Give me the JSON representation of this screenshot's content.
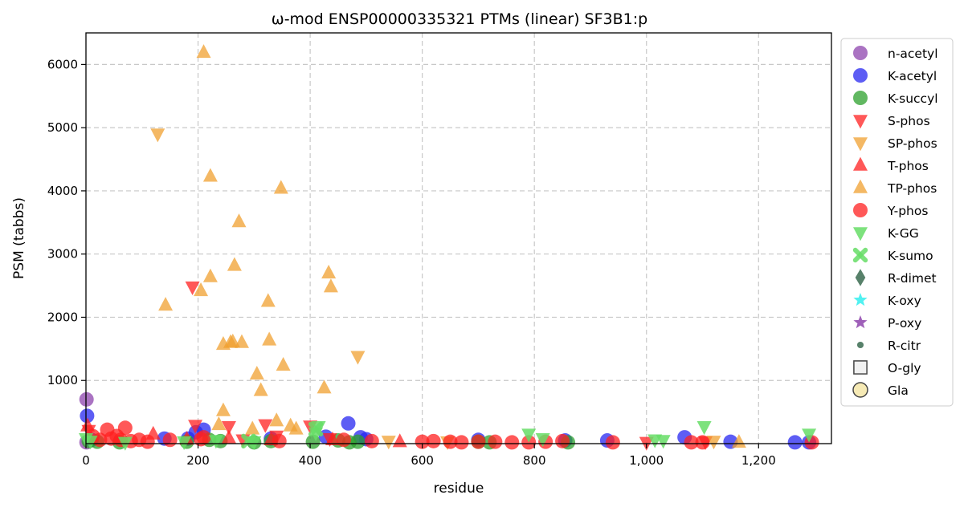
{
  "chart_data": {
    "type": "scatter",
    "title": "ω-mod ENSP00000335321 PTMs (linear) SF3B1:p",
    "xlabel": "residue",
    "ylabel": "PSM (tabbs)",
    "xlim": [
      0,
      1330
    ],
    "ylim": [
      0,
      6500
    ],
    "grid": true,
    "legend_placement": "outside-right",
    "xticks": [
      0,
      200,
      400,
      600,
      800,
      1000,
      1200
    ],
    "xtick_labels": [
      "0",
      "200",
      "400",
      "600",
      "800",
      "1,000",
      "1,200"
    ],
    "yticks": [
      1000,
      2000,
      3000,
      4000,
      5000,
      6000
    ],
    "ytick_labels": [
      "1000",
      "2000",
      "3000",
      "4000",
      "5000",
      "6000"
    ],
    "series": [
      {
        "name": "n-acetyl",
        "marker": "circle",
        "color": "#8e44ad",
        "alpha": 0.75,
        "x": [
          1,
          1
        ],
        "y": [
          700,
          20
        ]
      },
      {
        "name": "K-acetyl",
        "marker": "circle",
        "color": "#2727f0",
        "alpha": 0.75,
        "x": [
          2,
          10,
          140,
          182,
          196,
          210,
          330,
          428,
          468,
          490,
          500,
          700,
          855,
          930,
          1068,
          1150,
          1265,
          1290
        ],
        "y": [
          440,
          60,
          80,
          80,
          180,
          220,
          80,
          110,
          320,
          100,
          70,
          60,
          50,
          50,
          100,
          30,
          20,
          20
        ]
      },
      {
        "name": "K-succyl",
        "marker": "circle",
        "color": "#2ca02c",
        "alpha": 0.75,
        "x": [
          5,
          20,
          60,
          180,
          220,
          240,
          300,
          330,
          405,
          450,
          470,
          485,
          700,
          720,
          860
        ],
        "y": [
          40,
          30,
          20,
          30,
          60,
          40,
          20,
          40,
          30,
          50,
          20,
          30,
          30,
          20,
          20
        ]
      },
      {
        "name": "S-phos",
        "marker": "triangle-down",
        "color": "#ff2020",
        "alpha": 0.75,
        "x": [
          5,
          190,
          195,
          255,
          280,
          320,
          340,
          400,
          435,
          1000,
          1105
        ],
        "y": [
          210,
          2480,
          290,
          270,
          60,
          300,
          120,
          280,
          80,
          20,
          30
        ]
      },
      {
        "name": "SP-phos",
        "marker": "triangle-down",
        "color": "#f0a030",
        "alpha": 0.75,
        "x": [
          128,
          485,
          540,
          645,
          1120
        ],
        "y": [
          4900,
          1380,
          40,
          30,
          40
        ]
      },
      {
        "name": "T-phos",
        "marker": "triangle",
        "color": "#ff2020",
        "alpha": 0.75,
        "x": [
          3,
          120,
          180,
          255,
          330,
          440,
          560
        ],
        "y": [
          280,
          150,
          70,
          90,
          60,
          60,
          30
        ]
      },
      {
        "name": "TP-phos",
        "marker": "triangle",
        "color": "#f0a030",
        "alpha": 0.75,
        "x": [
          210,
          222,
          273,
          142,
          222,
          265,
          205,
          325,
          245,
          258,
          262,
          278,
          327,
          352,
          305,
          312,
          425,
          433,
          437,
          348,
          245,
          237,
          297,
          340,
          365,
          375,
          1165
        ],
        "y": [
          6190,
          4230,
          3510,
          2190,
          2640,
          2820,
          2420,
          2250,
          1570,
          1600,
          1610,
          1600,
          1640,
          1240,
          1100,
          840,
          880,
          2700,
          2480,
          4040,
          520,
          300,
          230,
          360,
          280,
          230,
          20
        ]
      },
      {
        "name": "Y-phos",
        "marker": "circle",
        "color": "#ff2020",
        "alpha": 0.75,
        "x": [
          12,
          25,
          38,
          45,
          55,
          62,
          70,
          80,
          95,
          110,
          150,
          205,
          210,
          345,
          460,
          510,
          600,
          620,
          650,
          670,
          700,
          730,
          760,
          790,
          820,
          850,
          940,
          1080,
          1100,
          1295
        ],
        "y": [
          120,
          60,
          220,
          80,
          120,
          60,
          250,
          40,
          60,
          30,
          60,
          70,
          100,
          40,
          60,
          40,
          30,
          40,
          30,
          20,
          30,
          30,
          20,
          20,
          30,
          40,
          20,
          20,
          20,
          20
        ]
      },
      {
        "name": "K-GG",
        "marker": "triangle-down",
        "color": "#66dd66",
        "alpha": 0.85,
        "x": [
          0,
          8,
          70,
          175,
          232,
          300,
          410,
          415,
          790,
          815,
          1015,
          1030,
          1103,
          1290
        ],
        "y": [
          80,
          40,
          20,
          30,
          50,
          30,
          170,
          270,
          150,
          80,
          60,
          50,
          270,
          150
        ]
      },
      {
        "name": "K-sumo",
        "marker": "x",
        "color": "#66dd66",
        "alpha": 0.85,
        "x": [
          290,
          410
        ],
        "y": [
          40,
          230
        ]
      },
      {
        "name": "R-dimet",
        "marker": "diamond",
        "color": "#3a6b50",
        "alpha": 0.85,
        "x": [],
        "y": []
      },
      {
        "name": "K-oxy",
        "marker": "star",
        "color": "#33eeee",
        "alpha": 0.85,
        "x": [],
        "y": []
      },
      {
        "name": "P-oxy",
        "marker": "star",
        "color": "#8e44ad",
        "alpha": 0.85,
        "x": [],
        "y": []
      },
      {
        "name": "R-citr",
        "marker": "small-circle",
        "color": "#3a6b50",
        "alpha": 0.85,
        "x": [],
        "y": []
      },
      {
        "name": "O-gly",
        "marker": "square",
        "color": "#eeeeee",
        "edge": "#444444",
        "alpha": 0.85,
        "x": [],
        "y": []
      },
      {
        "name": "Gla",
        "marker": "circle-outline",
        "color": "#f5e6a8",
        "edge": "#444444",
        "alpha": 0.85,
        "x": [],
        "y": []
      }
    ]
  }
}
